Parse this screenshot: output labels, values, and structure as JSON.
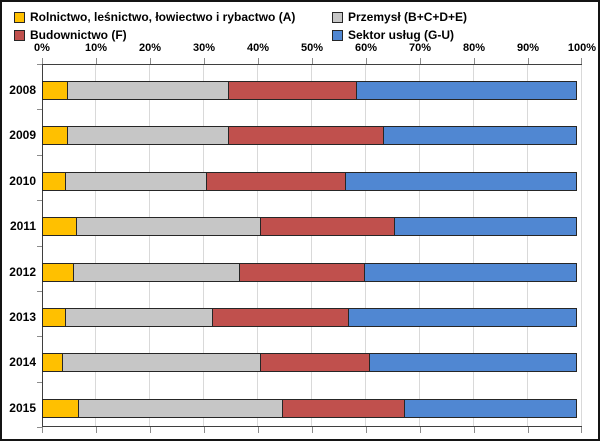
{
  "colors": {
    "background": "#FFFFFF",
    "frame_border": "#141414",
    "plot_axis": "#3F3F3F",
    "gridline": "#D9D9D9",
    "right_border": "#D9D9D9",
    "tick": "#8C8C8C",
    "bar_border": "#262626"
  },
  "legend": {
    "position": "top",
    "items": [
      {
        "swatch": "legend-swatch-agriculture",
        "label": "Rolnictwo, leśnictwo, łowiectwo i rybactwo (A)"
      },
      {
        "swatch": "legend-swatch-industry",
        "label": "Przemysł (B+C+D+E)"
      },
      {
        "swatch": "legend-swatch-construction",
        "label": "Budownictwo (F)"
      },
      {
        "swatch": "legend-swatch-services",
        "label": "Sektor usług (G-U)"
      }
    ]
  },
  "chart_data": {
    "type": "bar",
    "orientation": "horizontal-stacked",
    "title": "",
    "xlabel": "",
    "ylabel": "",
    "xlim": [
      0,
      100
    ],
    "grid": true,
    "legend_position": "top",
    "x_ticks": [
      "0%",
      "10%",
      "20%",
      "30%",
      "40%",
      "50%",
      "60%",
      "70%",
      "80%",
      "90%",
      "100%"
    ],
    "categories": [
      "2008",
      "2009",
      "2010",
      "2011",
      "2012",
      "2013",
      "2014",
      "2015"
    ],
    "series": [
      {
        "name": "Rolnictwo, leśnictwo, łowiectwo i rybactwo (A)",
        "color": "#FFC000",
        "values": [
          5,
          5,
          4.5,
          6.5,
          6,
          4.5,
          4,
          7
        ]
      },
      {
        "name": "Przemysł (B+C+D+E)",
        "color": "#C6C6C6",
        "values": [
          30,
          30,
          26.5,
          34.5,
          31,
          27.5,
          37,
          38
        ]
      },
      {
        "name": "Budownictwo (F)",
        "color": "#C0504D",
        "values": [
          24,
          29,
          26,
          25,
          23.5,
          25.5,
          20.5,
          23
        ]
      },
      {
        "name": "Sektor usług (G-U)",
        "color": "#5087D2",
        "values": [
          41,
          36,
          43,
          34,
          39.5,
          42.5,
          38.5,
          32
        ]
      }
    ],
    "unit": "%"
  }
}
